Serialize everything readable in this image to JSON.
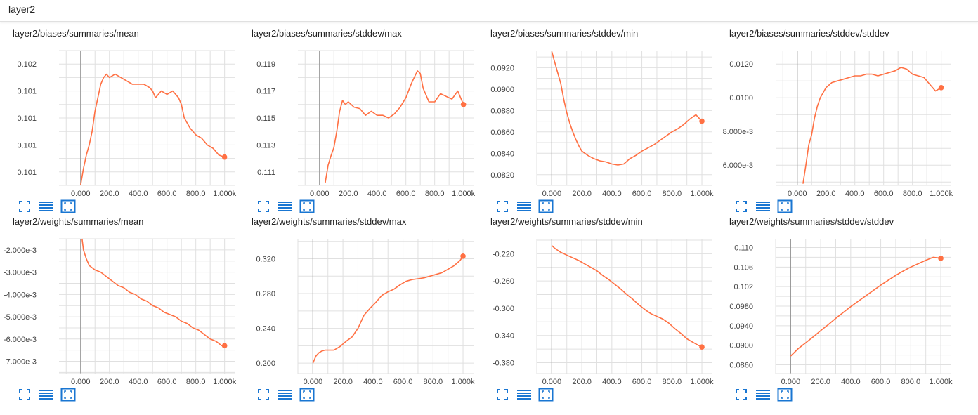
{
  "header": {
    "title": "layer2"
  },
  "colors": {
    "line": "#ff7043",
    "grid": "#e0e0e0",
    "axis": "#999999",
    "icon": "#1976d2"
  },
  "toolbar_icons": [
    "expand-icon",
    "toggle-lines-icon",
    "fit-domain-icon"
  ],
  "chart_data": [
    {
      "type": "line",
      "title": "layer2/biases/summaries/mean",
      "x_ticks": [
        "0.000",
        "200.0",
        "400.0",
        "600.0",
        "800.0",
        "1.000k"
      ],
      "y_ticks": [
        "0.101",
        "0.101",
        "0.101",
        "0.101",
        "0.102"
      ],
      "xlim": [
        -150,
        1070
      ],
      "ylim": [
        0.1004,
        0.1024
      ],
      "y_tick_values": [
        0.1006,
        0.101,
        0.1014,
        0.1018,
        0.1022
      ],
      "series": [
        {
          "x": [
            0,
            20,
            40,
            60,
            80,
            100,
            120,
            140,
            160,
            180,
            200,
            240,
            280,
            320,
            360,
            400,
            440,
            480,
            500,
            520,
            560,
            600,
            640,
            680,
            700,
            720,
            760,
            800,
            840,
            880,
            920,
            960,
            1000
          ],
          "y": [
            0.1004,
            0.10065,
            0.10085,
            0.101,
            0.1012,
            0.1015,
            0.1017,
            0.1019,
            0.102,
            0.10205,
            0.102,
            0.10205,
            0.102,
            0.10195,
            0.1019,
            0.1019,
            0.1019,
            0.10185,
            0.1018,
            0.1017,
            0.1018,
            0.10175,
            0.1018,
            0.1017,
            0.1016,
            0.1014,
            0.10125,
            0.10115,
            0.1011,
            0.101,
            0.10095,
            0.10085,
            0.10082
          ]
        }
      ]
    },
    {
      "type": "line",
      "title": "layer2/biases/summaries/stddev/max",
      "x_ticks": [
        "0.000",
        "200.0",
        "400.0",
        "600.0",
        "800.0",
        "1.000k"
      ],
      "y_ticks": [
        "0.111",
        "0.113",
        "0.115",
        "0.117",
        "0.119"
      ],
      "xlim": [
        -150,
        1070
      ],
      "ylim": [
        0.11,
        0.12
      ],
      "y_tick_values": [
        0.111,
        0.113,
        0.115,
        0.117,
        0.119
      ],
      "series": [
        {
          "x": [
            40,
            60,
            80,
            100,
            120,
            140,
            160,
            180,
            200,
            240,
            280,
            320,
            360,
            400,
            440,
            480,
            520,
            560,
            600,
            640,
            680,
            700,
            720,
            760,
            800,
            840,
            880,
            920,
            960,
            1000
          ],
          "y": [
            0.1102,
            0.1115,
            0.1122,
            0.1128,
            0.114,
            0.1155,
            0.1163,
            0.116,
            0.1162,
            0.1158,
            0.1157,
            0.1152,
            0.1155,
            0.1152,
            0.1152,
            0.115,
            0.1153,
            0.1158,
            0.1165,
            0.1176,
            0.1185,
            0.1183,
            0.1172,
            0.1162,
            0.1162,
            0.1168,
            0.1166,
            0.1164,
            0.117,
            0.116
          ]
        }
      ]
    },
    {
      "type": "line",
      "title": "layer2/biases/summaries/stddev/min",
      "x_ticks": [
        "0.000",
        "200.0",
        "400.0",
        "600.0",
        "800.0",
        "1.000k"
      ],
      "y_ticks": [
        "0.0820",
        "0.0840",
        "0.0860",
        "0.0880",
        "0.0900",
        "0.0920"
      ],
      "xlim": [
        -100,
        1070
      ],
      "ylim": [
        0.081,
        0.0936
      ],
      "y_tick_values": [
        0.082,
        0.084,
        0.086,
        0.088,
        0.09,
        0.092
      ],
      "series": [
        {
          "x": [
            0,
            20,
            40,
            60,
            80,
            100,
            120,
            140,
            160,
            180,
            200,
            240,
            280,
            320,
            360,
            400,
            440,
            480,
            520,
            560,
            600,
            640,
            680,
            720,
            760,
            800,
            840,
            880,
            920,
            960,
            1000
          ],
          "y": [
            0.0935,
            0.0925,
            0.0915,
            0.0905,
            0.089,
            0.0878,
            0.0868,
            0.086,
            0.0853,
            0.0847,
            0.0842,
            0.0838,
            0.0835,
            0.0833,
            0.0832,
            0.083,
            0.0829,
            0.083,
            0.0835,
            0.0838,
            0.0842,
            0.0845,
            0.0848,
            0.0852,
            0.0856,
            0.086,
            0.0863,
            0.0867,
            0.0872,
            0.0876,
            0.087
          ]
        }
      ]
    },
    {
      "type": "line",
      "title": "layer2/biases/summaries/stddev/stddev",
      "x_ticks": [
        "0.000",
        "200.0",
        "400.0",
        "600.0",
        "800.0",
        "1.000k"
      ],
      "y_ticks": [
        "6.000e-3",
        "8.000e-3",
        "0.0100",
        "0.0120"
      ],
      "xlim": [
        -150,
        1070
      ],
      "ylim": [
        0.0048,
        0.0128
      ],
      "y_tick_values": [
        0.006,
        0.008,
        0.01,
        0.012
      ],
      "series": [
        {
          "x": [
            40,
            60,
            80,
            100,
            120,
            140,
            160,
            180,
            200,
            240,
            280,
            320,
            360,
            400,
            440,
            480,
            520,
            560,
            600,
            640,
            680,
            720,
            760,
            800,
            840,
            880,
            920,
            960,
            1000
          ],
          "y": [
            0.0049,
            0.006,
            0.0072,
            0.0078,
            0.0088,
            0.0095,
            0.01,
            0.0103,
            0.0106,
            0.0109,
            0.011,
            0.0111,
            0.0112,
            0.0113,
            0.0113,
            0.0114,
            0.0114,
            0.0113,
            0.0114,
            0.0115,
            0.0116,
            0.0118,
            0.0117,
            0.0114,
            0.0113,
            0.0112,
            0.0108,
            0.0104,
            0.0106
          ]
        }
      ]
    },
    {
      "type": "line",
      "title": "layer2/weights/summaries/mean",
      "x_ticks": [
        "0.000",
        "200.0",
        "400.0",
        "600.0",
        "800.0",
        "1.000k"
      ],
      "y_ticks": [
        "-7.000e-3",
        "-6.000e-3",
        "-5.000e-3",
        "-4.000e-3",
        "-3.000e-3",
        "-2.000e-3"
      ],
      "xlim": [
        -150,
        1070
      ],
      "ylim": [
        -0.00755,
        -0.0015
      ],
      "y_tick_values": [
        -0.007,
        -0.006,
        -0.005,
        -0.004,
        -0.003,
        -0.002
      ],
      "series": [
        {
          "x": [
            10,
            20,
            40,
            60,
            80,
            100,
            140,
            180,
            220,
            260,
            300,
            340,
            380,
            420,
            460,
            500,
            540,
            580,
            620,
            660,
            700,
            740,
            780,
            820,
            860,
            900,
            940,
            980,
            1000
          ],
          "y": [
            -0.0015,
            -0.002,
            -0.0024,
            -0.0027,
            -0.0028,
            -0.0029,
            -0.003,
            -0.0032,
            -0.0034,
            -0.0036,
            -0.0037,
            -0.0039,
            -0.004,
            -0.0042,
            -0.0043,
            -0.0045,
            -0.0046,
            -0.0048,
            -0.0049,
            -0.005,
            -0.0052,
            -0.0053,
            -0.0055,
            -0.0056,
            -0.0058,
            -0.006,
            -0.0061,
            -0.0063,
            -0.0063
          ]
        }
      ]
    },
    {
      "type": "line",
      "title": "layer2/weights/summaries/stddev/max",
      "x_ticks": [
        "0.000",
        "200.0",
        "400.0",
        "600.0",
        "800.0",
        "1.000k"
      ],
      "y_ticks": [
        "0.200",
        "0.240",
        "0.280",
        "0.320"
      ],
      "xlim": [
        -100,
        1070
      ],
      "ylim": [
        0.188,
        0.343
      ],
      "y_tick_values": [
        0.2,
        0.24,
        0.28,
        0.32
      ],
      "series": [
        {
          "x": [
            0,
            20,
            40,
            60,
            80,
            100,
            140,
            180,
            220,
            260,
            300,
            340,
            380,
            420,
            460,
            500,
            540,
            580,
            620,
            660,
            700,
            740,
            780,
            820,
            860,
            900,
            940,
            980,
            1000
          ],
          "y": [
            0.2,
            0.208,
            0.212,
            0.214,
            0.215,
            0.215,
            0.215,
            0.219,
            0.225,
            0.23,
            0.24,
            0.255,
            0.263,
            0.27,
            0.278,
            0.282,
            0.285,
            0.29,
            0.294,
            0.296,
            0.297,
            0.298,
            0.3,
            0.302,
            0.304,
            0.308,
            0.312,
            0.318,
            0.323
          ]
        }
      ]
    },
    {
      "type": "line",
      "title": "layer2/weights/summaries/stddev/min",
      "x_ticks": [
        "0.000",
        "200.0",
        "400.0",
        "600.0",
        "800.0",
        "1.000k"
      ],
      "y_ticks": [
        "-0.380",
        "-0.340",
        "-0.300",
        "-0.260",
        "-0.220"
      ],
      "xlim": [
        -100,
        1070
      ],
      "ylim": [
        -0.396,
        -0.198
      ],
      "y_tick_values": [
        -0.38,
        -0.34,
        -0.3,
        -0.26,
        -0.22
      ],
      "series": [
        {
          "x": [
            0,
            20,
            40,
            60,
            80,
            100,
            140,
            180,
            220,
            260,
            300,
            340,
            380,
            420,
            460,
            500,
            540,
            580,
            620,
            660,
            700,
            740,
            780,
            820,
            860,
            900,
            940,
            980,
            1000
          ],
          "y": [
            -0.208,
            -0.212,
            -0.215,
            -0.218,
            -0.22,
            -0.222,
            -0.226,
            -0.23,
            -0.235,
            -0.24,
            -0.245,
            -0.252,
            -0.258,
            -0.265,
            -0.272,
            -0.28,
            -0.287,
            -0.295,
            -0.302,
            -0.308,
            -0.312,
            -0.316,
            -0.322,
            -0.33,
            -0.337,
            -0.345,
            -0.35,
            -0.355,
            -0.357
          ]
        }
      ]
    },
    {
      "type": "line",
      "title": "layer2/weights/summaries/stddev/stddev",
      "x_ticks": [
        "0.000",
        "200.0",
        "400.0",
        "600.0",
        "800.0",
        "1.000k"
      ],
      "y_ticks": [
        "0.0860",
        "0.0900",
        "0.0940",
        "0.0980",
        "0.102",
        "0.106",
        "0.110"
      ],
      "xlim": [
        -100,
        1070
      ],
      "ylim": [
        0.0842,
        0.1118
      ],
      "y_tick_values": [
        0.086,
        0.09,
        0.094,
        0.098,
        0.102,
        0.106,
        0.11
      ],
      "series": [
        {
          "x": [
            0,
            50,
            100,
            150,
            200,
            250,
            300,
            350,
            400,
            450,
            500,
            550,
            600,
            650,
            700,
            750,
            800,
            850,
            900,
            950,
            1000
          ],
          "y": [
            0.0878,
            0.0893,
            0.0905,
            0.0917,
            0.093,
            0.0942,
            0.0955,
            0.0967,
            0.0979,
            0.099,
            0.1001,
            0.1012,
            0.1023,
            0.1033,
            0.1043,
            0.1052,
            0.106,
            0.1067,
            0.1074,
            0.108,
            0.1078
          ]
        }
      ]
    }
  ]
}
